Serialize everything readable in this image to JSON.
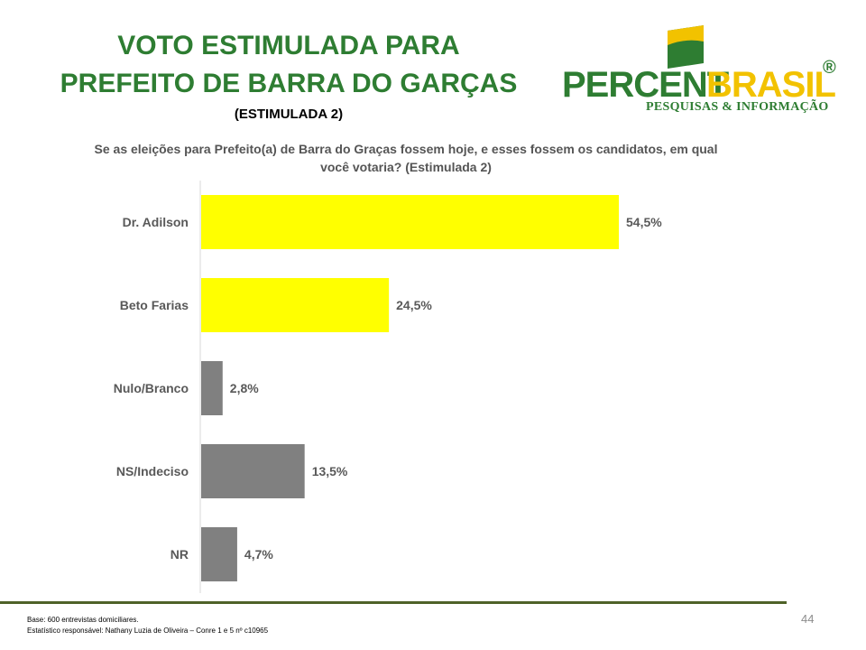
{
  "title": {
    "line1": "VOTO ESTIMULADA PARA",
    "line2": "PREFEITO DE BARRA DO GARÇAS",
    "subtitle": "(ESTIMULADA 2)"
  },
  "question": "Se as eleições para Prefeito(a) de Barra do Graças fossem hoje, e esses fossem os candidatos, em qual você votaria? (Estimulada 2)",
  "logo": {
    "part1": "PERCENT",
    "part2": "BRASIL",
    "registered": "®",
    "tagline": "PESQUISAS & INFORMAÇÃO",
    "colors": {
      "green": "#2e7d32",
      "yellow": "#f2c200"
    }
  },
  "chart_data": {
    "type": "bar",
    "orientation": "horizontal",
    "categories": [
      "Dr. Adilson",
      "Beto Farias",
      "Nulo/Branco",
      "NS/Indeciso",
      "NR"
    ],
    "values": [
      54.5,
      24.5,
      2.8,
      13.5,
      4.7
    ],
    "labels": [
      "54,5%",
      "24,5%",
      "2,8%",
      "13,5%",
      "4,7%"
    ],
    "colors": [
      "#ffff00",
      "#ffff00",
      "#808080",
      "#808080",
      "#808080"
    ],
    "xlim": [
      0,
      60
    ],
    "grid": false,
    "legend": "none"
  },
  "footer": {
    "base": "Base: 600 entrevistas domiciliares.",
    "responsavel": "Estatístico responsável: Nathany Luzia de Oliveira – Conre 1 e 5 nº c10965",
    "page": "44"
  }
}
